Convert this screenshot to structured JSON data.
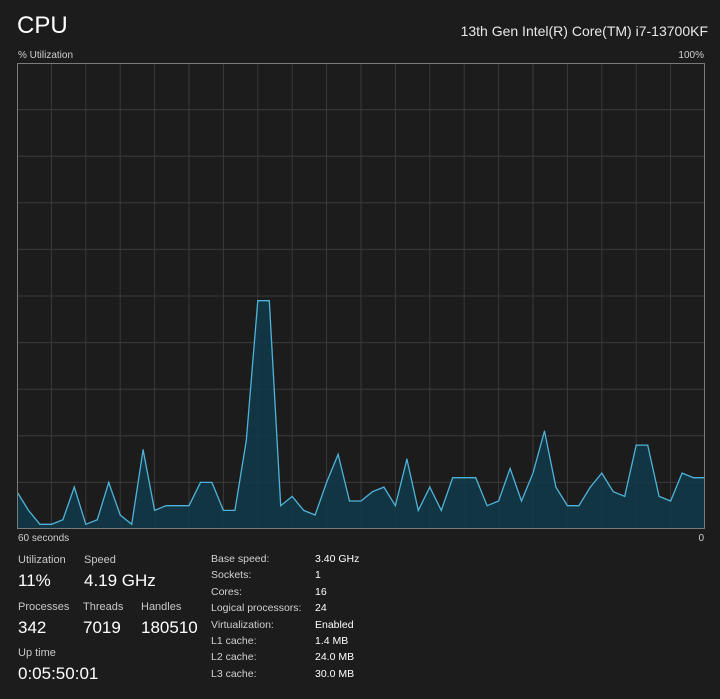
{
  "header": {
    "title": "CPU",
    "cpu_model": "13th Gen Intel(R) Core(TM) i7-13700KF"
  },
  "graph": {
    "y_label": "% Utilization",
    "y_max_label": "100%",
    "x_label": "60 seconds",
    "x_min_label": "0",
    "line_color": "#4fb3d9",
    "fill_color": "#0f3a4a",
    "grid_color": "#3a3a3a",
    "border_color": "#7a7a7a"
  },
  "chart_data": {
    "type": "area",
    "x": [
      60,
      59,
      58,
      57,
      56,
      55,
      54,
      53,
      52,
      51,
      50,
      49,
      48,
      47,
      46,
      45,
      44,
      43,
      42,
      41,
      40,
      39,
      38,
      37,
      36,
      35,
      34,
      33,
      32,
      31,
      30,
      29,
      28,
      27,
      26,
      25,
      24,
      23,
      22,
      21,
      20,
      19,
      18,
      17,
      16,
      15,
      14,
      13,
      12,
      11,
      10,
      9,
      8,
      7,
      6,
      5,
      4,
      3,
      2,
      1,
      0
    ],
    "values": [
      8,
      4,
      1,
      1,
      2,
      9,
      1,
      2,
      10,
      3,
      1,
      17,
      4,
      5,
      5,
      5,
      10,
      10,
      4,
      4,
      19,
      49,
      49,
      5,
      7,
      4,
      3,
      10,
      16,
      6,
      6,
      8,
      9,
      5,
      15,
      4,
      9,
      4,
      11,
      11,
      11,
      5,
      6,
      13,
      6,
      12,
      21,
      9,
      5,
      5,
      9,
      12,
      8,
      7,
      18,
      18,
      7,
      6,
      12,
      11,
      11
    ],
    "xlim": [
      60,
      0
    ],
    "ylim": [
      0,
      100
    ],
    "grid": true
  },
  "stats": {
    "utilization": {
      "label": "Utilization",
      "value": "11%"
    },
    "speed": {
      "label": "Speed",
      "value": "4.19 GHz"
    },
    "processes": {
      "label": "Processes",
      "value": "342"
    },
    "threads": {
      "label": "Threads",
      "value": "7019"
    },
    "handles": {
      "label": "Handles",
      "value": "180510"
    },
    "uptime": {
      "label": "Up time",
      "value": "0:05:50:01"
    }
  },
  "specs": [
    {
      "label": "Base speed:",
      "value": "3.40 GHz"
    },
    {
      "label": "Sockets:",
      "value": "1"
    },
    {
      "label": "Cores:",
      "value": "16"
    },
    {
      "label": "Logical processors:",
      "value": "24"
    },
    {
      "label": "Virtualization:",
      "value": "Enabled"
    },
    {
      "label": "L1 cache:",
      "value": "1.4 MB"
    },
    {
      "label": "L2 cache:",
      "value": "24.0 MB"
    },
    {
      "label": "L3 cache:",
      "value": "30.0 MB"
    }
  ]
}
